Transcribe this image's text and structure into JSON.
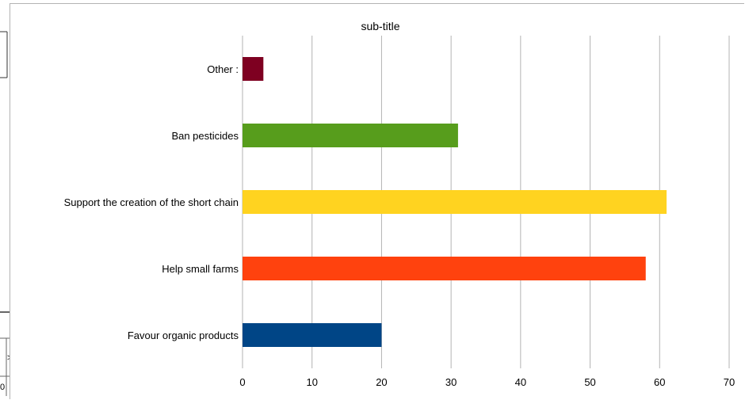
{
  "chart_data": {
    "type": "bar",
    "orientation": "horizontal",
    "title": "sub-title",
    "xlabel": "",
    "ylabel": "",
    "categories": [
      "Favour organic products",
      "Help small farms",
      "Support the creation of the short chain",
      "Ban pesticides",
      "Other :"
    ],
    "values": [
      20,
      58,
      61,
      31,
      3
    ],
    "colors": [
      "#004586",
      "#ff420e",
      "#ffd320",
      "#579d1c",
      "#7e0021"
    ],
    "xlim": [
      0,
      70
    ],
    "xticks": [
      0,
      10,
      20,
      30,
      40,
      50,
      60,
      70
    ],
    "grid": true,
    "legend": false
  },
  "fragment": {
    "left_chars": [
      ">",
      "0"
    ]
  }
}
